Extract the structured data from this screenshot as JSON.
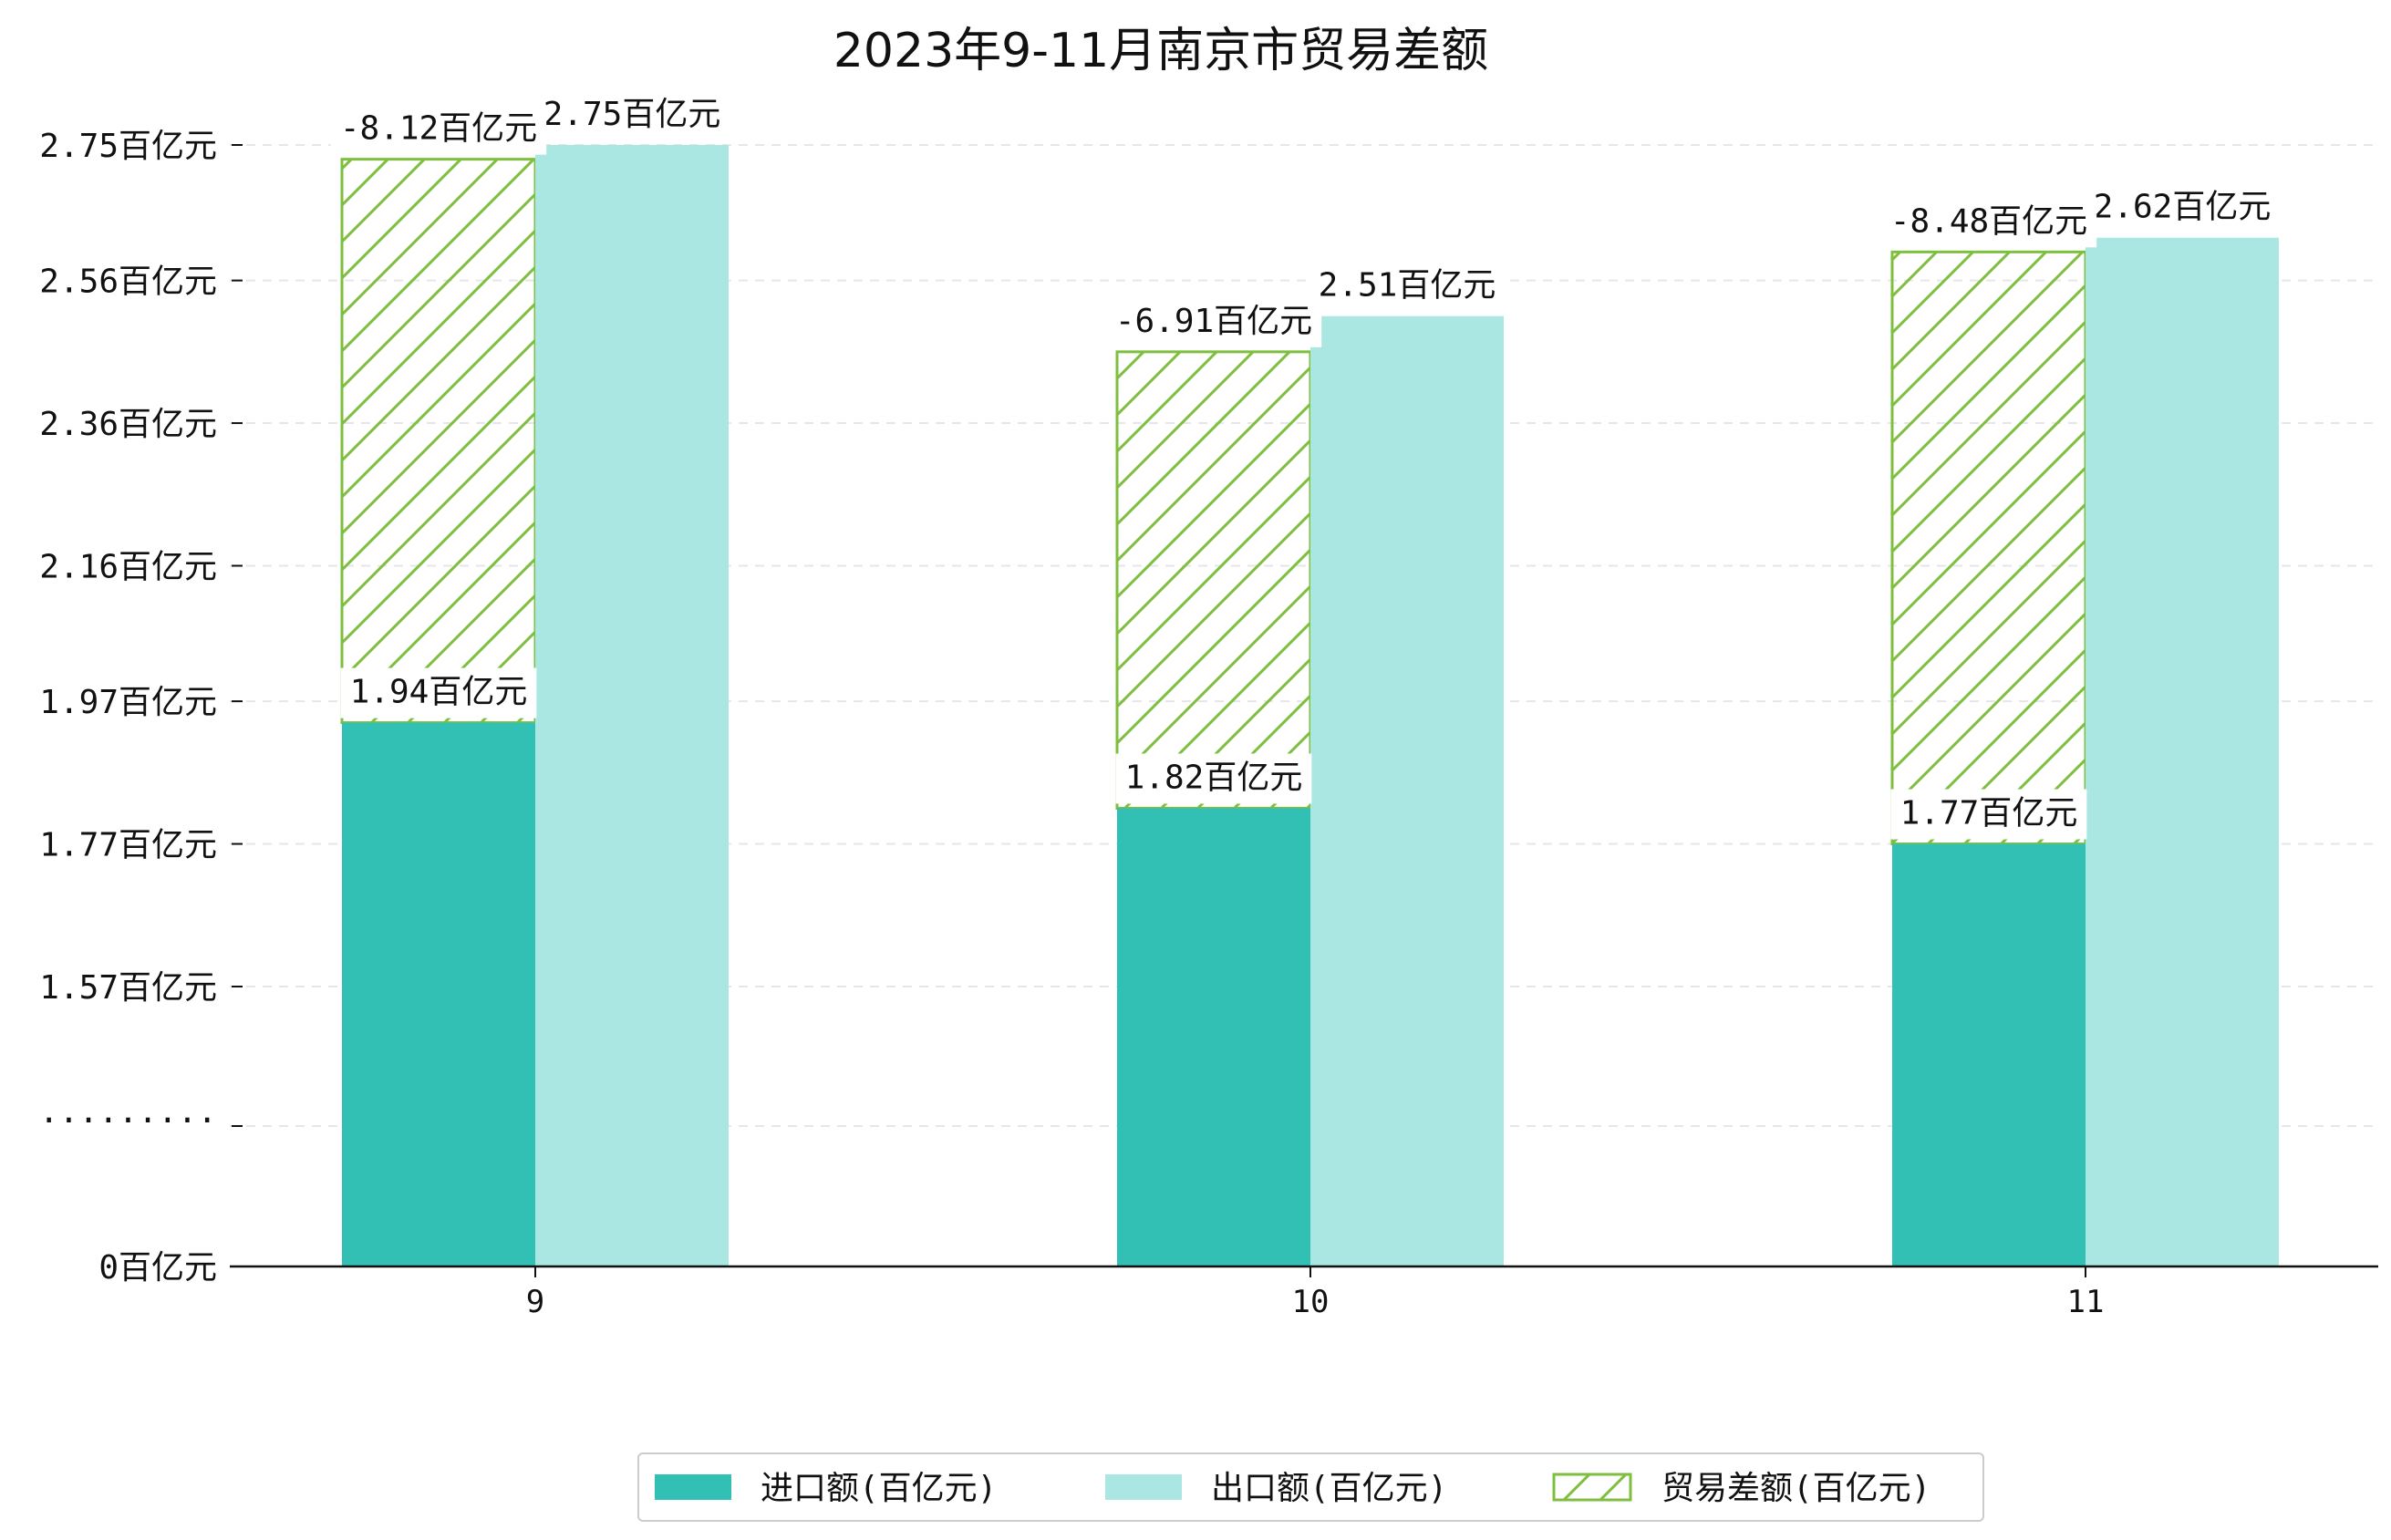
{
  "chart_data": {
    "type": "bar",
    "title": "2023年9-11月南京市贸易差额",
    "xlabel": "",
    "ylabel": "",
    "categories": [
      "9",
      "10",
      "11"
    ],
    "series": [
      {
        "name": "进口额(百亿元)",
        "values": [
          1.94,
          1.82,
          1.77
        ],
        "labels": [
          "1.94百亿元",
          "1.82百亿元",
          "1.77百亿元"
        ],
        "color": "#32c0b4"
      },
      {
        "name": "出口额(百亿元)",
        "values": [
          2.75,
          2.51,
          2.62
        ],
        "labels": [
          "2.75百亿元",
          "2.51百亿元",
          "2.62百亿元"
        ],
        "color": "#aae7e2"
      },
      {
        "name": "贸易差额(百亿元)",
        "values": [
          -8.12,
          -6.91,
          -8.48
        ],
        "labels": [
          "-8.12百亿元",
          "-6.91百亿元",
          "-8.48百亿元"
        ],
        "color": "#7fbf3f",
        "pattern": "hatch",
        "stacked_on": "进口额(百亿元)",
        "display_top": [
          2.73,
          2.46,
          2.6
        ]
      }
    ],
    "y_axis": {
      "broken": true,
      "break_label": "·········",
      "ticks": [
        {
          "value": 0,
          "label": "0百亿元"
        },
        {
          "value": 1.57,
          "label": "1.57百亿元"
        },
        {
          "value": 1.77,
          "label": "1.77百亿元"
        },
        {
          "value": 1.97,
          "label": "1.97百亿元"
        },
        {
          "value": 2.16,
          "label": "2.16百亿元"
        },
        {
          "value": 2.36,
          "label": "2.36百亿元"
        },
        {
          "value": 2.56,
          "label": "2.56百亿元"
        },
        {
          "value": 2.75,
          "label": "2.75百亿元"
        }
      ]
    },
    "grid": "horizontal dashed",
    "legend_position": "bottom-center"
  }
}
